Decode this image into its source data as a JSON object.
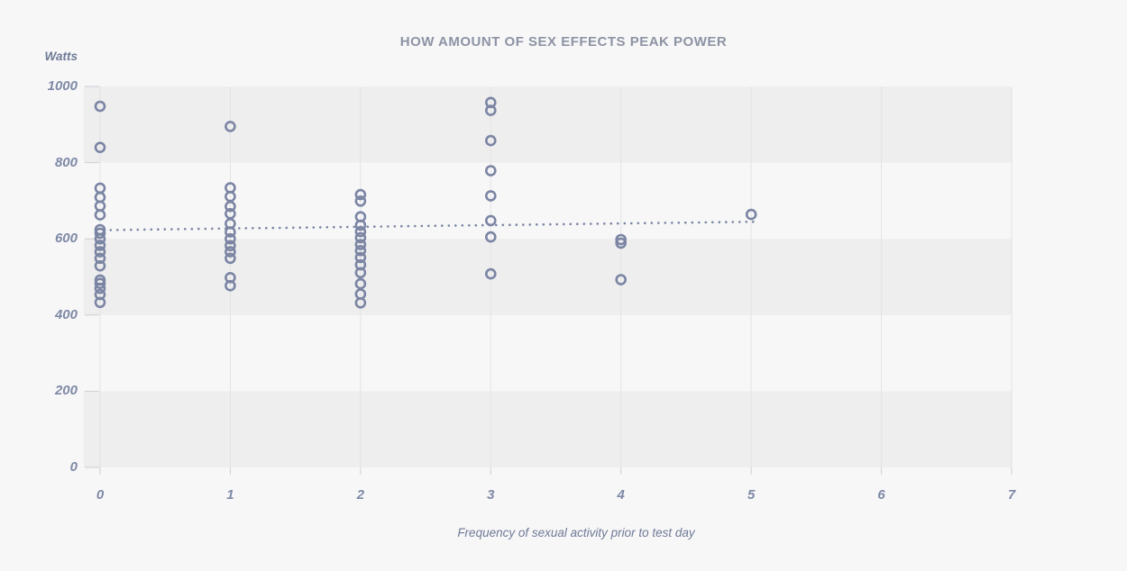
{
  "chart_data": {
    "type": "scatter",
    "title": "HOW AMOUNT OF SEX EFFECTS PEAK POWER",
    "y_axis_label": "Watts",
    "x_axis_label": "Frequency of sexual activity prior to test day",
    "x_ticks": [
      0,
      1,
      2,
      3,
      4,
      5,
      6,
      7
    ],
    "y_ticks": [
      0,
      200,
      400,
      600,
      800,
      1000
    ],
    "xlim": [
      0,
      7
    ],
    "ylim": [
      0,
      1000
    ],
    "grid": "horizontal-bands",
    "legend": "none",
    "shaded_bands": [
      [
        800,
        1000
      ],
      [
        400,
        600
      ],
      [
        0,
        200
      ]
    ],
    "series": [
      {
        "x": 0,
        "values": [
          948,
          840,
          733,
          709,
          686,
          663,
          624,
          615,
          600,
          583,
          566,
          549,
          529,
          492,
          483,
          470,
          454,
          433
        ]
      },
      {
        "x": 1,
        "values": [
          895,
          734,
          711,
          685,
          666,
          640,
          618,
          600,
          582,
          566,
          549,
          498,
          477
        ]
      },
      {
        "x": 2,
        "values": [
          716,
          699,
          658,
          636,
          619,
          603,
          585,
          569,
          551,
          532,
          511,
          482,
          455,
          432
        ]
      },
      {
        "x": 3,
        "values": [
          958,
          937,
          858,
          779,
          713,
          648,
          605,
          508
        ]
      },
      {
        "x": 4,
        "values": [
          598,
          589,
          493
        ]
      },
      {
        "x": 5,
        "values": [
          664
        ]
      }
    ],
    "trendline": {
      "style": "dotted",
      "x_start": 0.03,
      "y_start": 623,
      "x_end": 5.03,
      "y_end": 645
    },
    "colors": {
      "background": "#f7f7f8",
      "band": "#eeeeef",
      "gridline": "#e3e3e6",
      "tick": "#cfcfd5",
      "point": "#7b85a3",
      "trend": "#7b85a3",
      "title": "#8d93a3",
      "tick_label": "#7e89a6",
      "axis_title": "#6f7a96"
    }
  }
}
